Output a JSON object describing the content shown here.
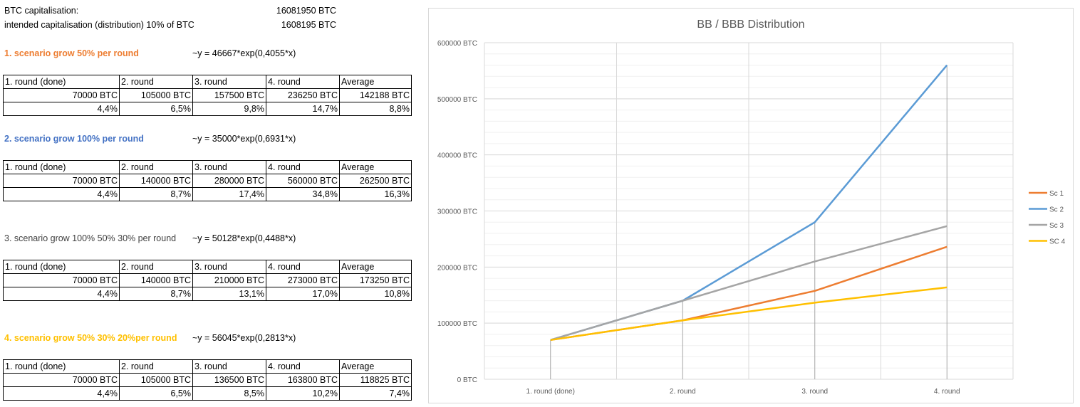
{
  "header": {
    "cap_label": "BTC capitalisation:",
    "cap_value": "16081950 BTC",
    "intended_label": "intended capitalisation (distribution) 10% of BTC",
    "intended_value": "1608195 BTC"
  },
  "table_headers": [
    "1. round (done)",
    "2. round",
    "3. round",
    "4. round",
    "Average"
  ],
  "scenarios": [
    {
      "title": "1. scenario grow 50% per round",
      "formula": "~y = 46667*exp(0,4055*x)",
      "color": "#ed7d31",
      "values": [
        "70000 BTC",
        "105000 BTC",
        "157500 BTC",
        "236250 BTC",
        "142188 BTC"
      ],
      "percents": [
        "4,4%",
        "6,5%",
        "9,8%",
        "14,7%",
        "8,8%"
      ]
    },
    {
      "title": "2. scenario grow 100% per round",
      "formula": "~y = 35000*exp(0,6931*x)",
      "color": "#4472c4",
      "values": [
        "70000 BTC",
        "140000 BTC",
        "280000 BTC",
        "560000 BTC",
        "262500 BTC"
      ],
      "percents": [
        "4,4%",
        "8,7%",
        "17,4%",
        "34,8%",
        "16,3%"
      ]
    },
    {
      "title": "3. scenario grow 100% 50% 30% per round",
      "formula": "~y = 50128*exp(0,4488*x)",
      "color": "#404040",
      "values": [
        "70000 BTC",
        "140000 BTC",
        "210000 BTC",
        "273000 BTC",
        "173250 BTC"
      ],
      "percents": [
        "4,4%",
        "8,7%",
        "13,1%",
        "17,0%",
        "10,8%"
      ]
    },
    {
      "title": "4. scenario grow 50% 30% 20%per round",
      "formula": "~y = 56045*exp(0,2813*x)",
      "color": "#ffc000",
      "values": [
        "70000 BTC",
        "105000 BTC",
        "136500 BTC",
        "163800 BTC",
        "118825 BTC"
      ],
      "percents": [
        "4,4%",
        "6,5%",
        "8,5%",
        "10,2%",
        "7,4%"
      ]
    }
  ],
  "chart_data": {
    "type": "line",
    "title": "BB / BBB Distribution",
    "categories": [
      "1. round (done)",
      "2. round",
      "3. round",
      "4. round"
    ],
    "ylim": [
      0,
      600000
    ],
    "yticks": [
      0,
      100000,
      200000,
      300000,
      400000,
      500000,
      600000
    ],
    "ytick_labels": [
      "0 BTC",
      "100000 BTC",
      "200000 BTC",
      "300000 BTC",
      "400000 BTC",
      "500000 BTC",
      "600000 BTC"
    ],
    "grid": true,
    "legend_position": "right",
    "series": [
      {
        "name": "Sc 1",
        "color": "#ed7d31",
        "values": [
          70000,
          105000,
          157500,
          236250
        ]
      },
      {
        "name": "Sc 2",
        "color": "#5b9bd5",
        "values": [
          70000,
          140000,
          280000,
          560000
        ]
      },
      {
        "name": "Sc 3",
        "color": "#a5a5a5",
        "values": [
          70000,
          140000,
          210000,
          273000
        ]
      },
      {
        "name": "SC 4",
        "color": "#ffc000",
        "values": [
          70000,
          105000,
          136500,
          163800
        ]
      }
    ]
  }
}
